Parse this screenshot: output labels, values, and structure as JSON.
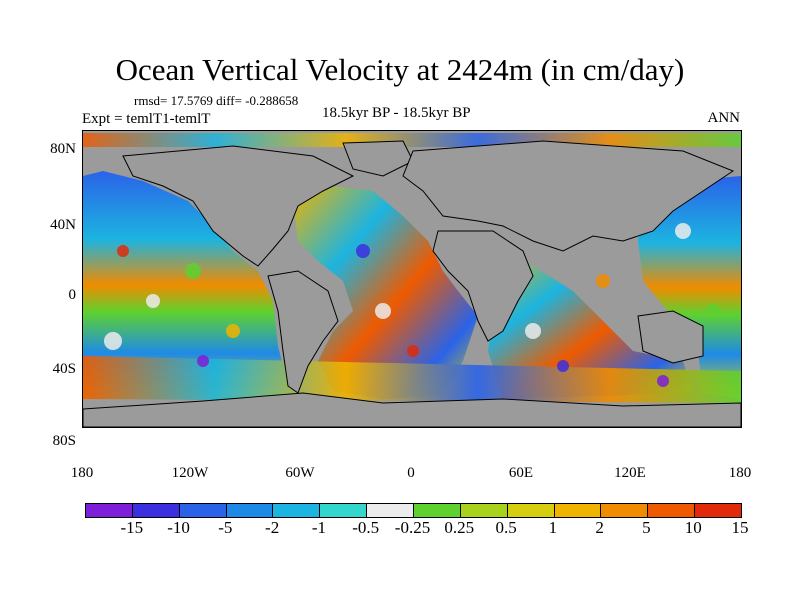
{
  "title": "Ocean Vertical Velocity at 2424m (in cm/day)",
  "stats": "rmsd= 17.5769 diff= -0.288658",
  "experiment": "Expt = temlT1-temlT",
  "center_label": "18.5kyr BP - 18.5kyr BP",
  "season": "ANN",
  "lat_ticks": [
    "80N",
    "40N",
    "0",
    "40S",
    "80S"
  ],
  "lon_ticks": [
    "180",
    "120W",
    "60W",
    "0",
    "60E",
    "120E",
    "180"
  ],
  "colorbar": {
    "colors": [
      "#7d1fd8",
      "#3b2fe0",
      "#2a63e8",
      "#1f8ae6",
      "#1cb4e0",
      "#33d6cc",
      "#ececec",
      "#5ed130",
      "#a9d21c",
      "#d6cf10",
      "#f0b400",
      "#f08c00",
      "#ee5a00",
      "#e02a0a"
    ],
    "labels": [
      "-15",
      "-10",
      "-5",
      "-2",
      "-1",
      "-0.5",
      "-0.25",
      "0.25",
      "0.5",
      "1",
      "2",
      "5",
      "10",
      "15"
    ]
  }
}
